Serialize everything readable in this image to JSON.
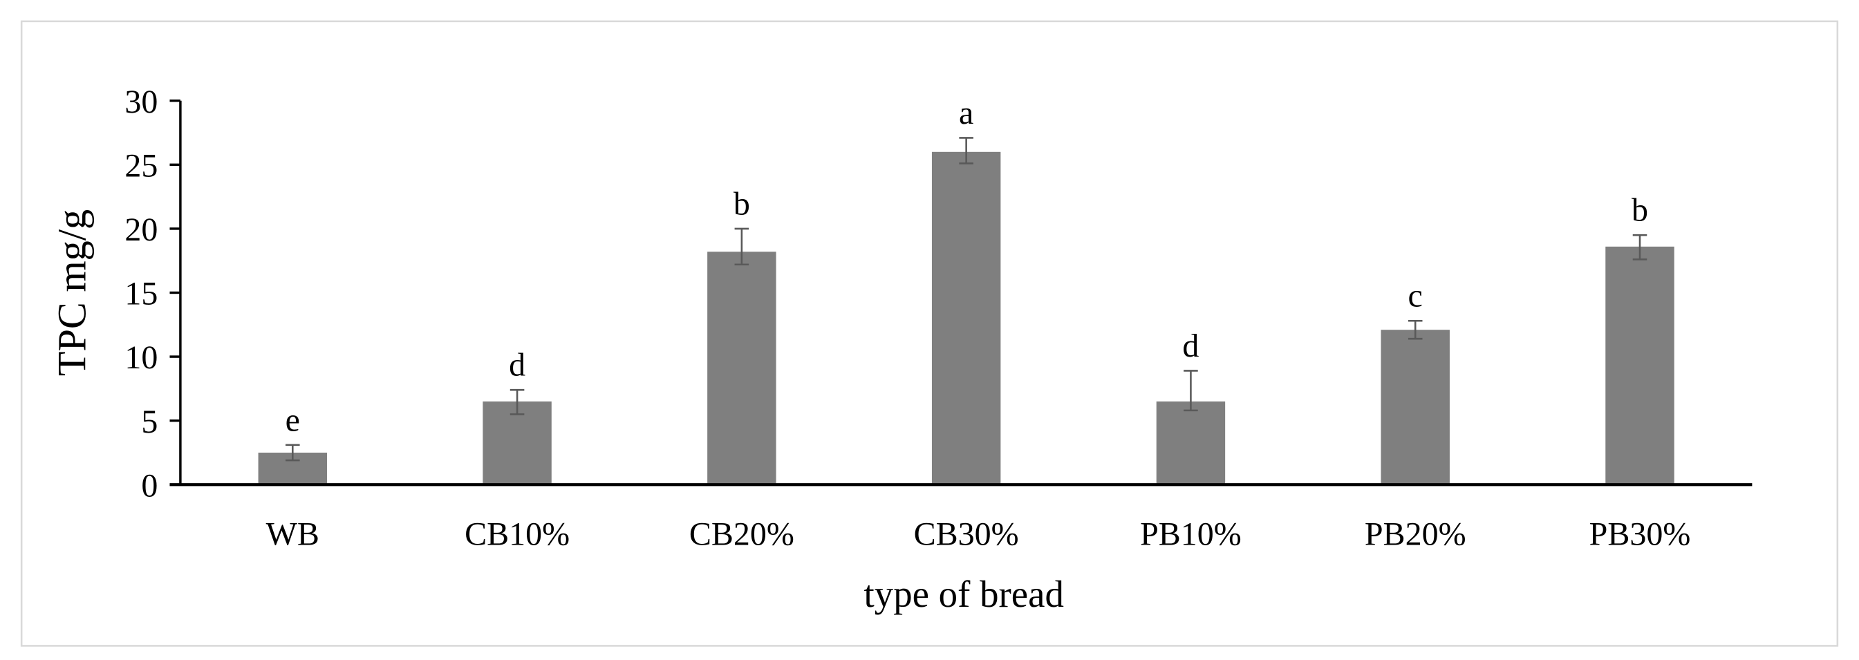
{
  "chart_data": {
    "type": "bar",
    "title": "",
    "xlabel": "type of bread",
    "ylabel": "TPC mg/g",
    "ylim": [
      0,
      30
    ],
    "yticks": [
      0,
      5,
      10,
      15,
      20,
      25,
      30
    ],
    "grid": false,
    "bar_color": "#7f7f7f",
    "error_color": "#595959",
    "categories": [
      "WB",
      "CB10%",
      "CB20%",
      "CB30%",
      "PB10%",
      "PB20%",
      "PB30%"
    ],
    "values": [
      2.5,
      6.5,
      18.2,
      26.0,
      6.5,
      12.1,
      18.6
    ],
    "error_plus": [
      0.6,
      0.9,
      1.8,
      1.1,
      2.4,
      0.7,
      0.9
    ],
    "error_minus": [
      0.6,
      1.0,
      1.0,
      0.9,
      0.7,
      0.7,
      1.0
    ],
    "significance_letters": [
      "e",
      "d",
      "b",
      "a",
      "d",
      "c",
      "b"
    ]
  }
}
